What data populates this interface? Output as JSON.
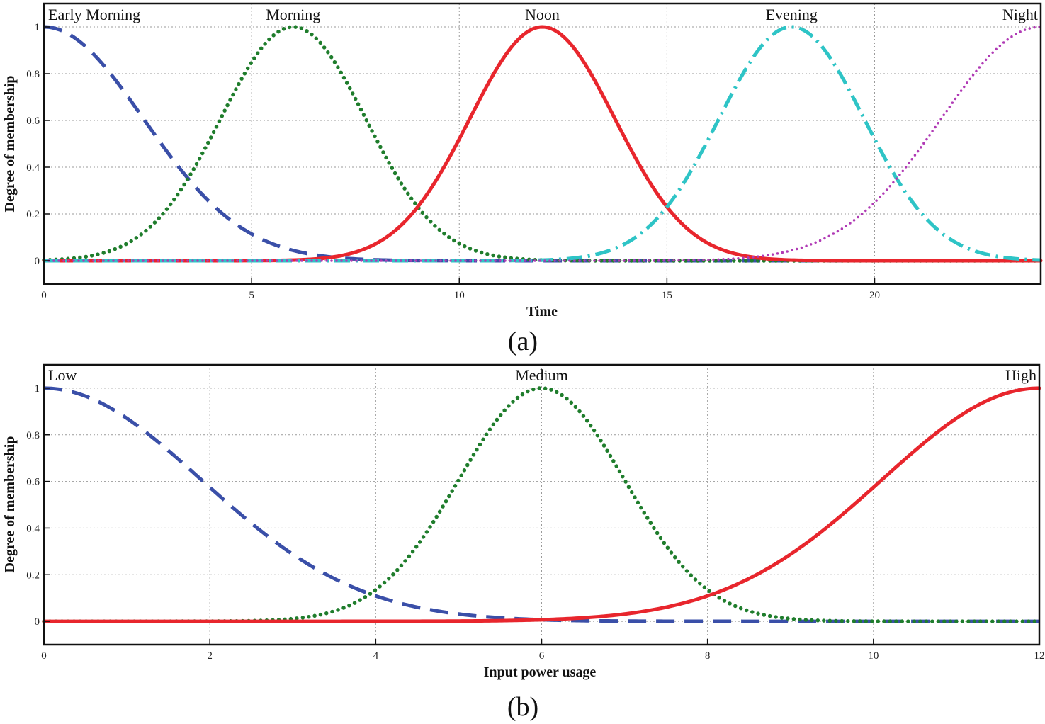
{
  "chart_data": [
    {
      "type": "line",
      "panel_label": "(a)",
      "xlabel": "Time",
      "ylabel": "Degree of membership",
      "xlim": [
        0,
        24
      ],
      "ylim": [
        -0.1,
        1.1
      ],
      "xticks": [
        0,
        5,
        10,
        15,
        20
      ],
      "yticks": [
        0,
        0.2,
        0.4,
        0.6,
        0.8,
        1
      ],
      "grid": true,
      "membership_shape": "gaussian",
      "series": [
        {
          "name": "Early Morning",
          "center": 0,
          "sigma": 2.4,
          "color": "#3a4fa8",
          "dash": "dashed"
        },
        {
          "name": "Morning",
          "center": 6,
          "sigma": 1.75,
          "color": "#1f7d2c",
          "dash": "dotted"
        },
        {
          "name": "Noon",
          "center": 12,
          "sigma": 1.75,
          "color": "#e8262d",
          "dash": "solid"
        },
        {
          "name": "Evening",
          "center": 18,
          "sigma": 1.75,
          "color": "#2ec4c6",
          "dash": "dashdot"
        },
        {
          "name": "Night",
          "center": 24,
          "sigma": 2.4,
          "color": "#b03ab5",
          "dash": "finedot"
        }
      ]
    },
    {
      "type": "line",
      "panel_label": "(b)",
      "xlabel": "Input power usage",
      "ylabel": "Degree of membership",
      "xlim": [
        0,
        12
      ],
      "ylim": [
        -0.1,
        1.1
      ],
      "xticks": [
        0,
        2,
        4,
        6,
        8,
        10,
        12
      ],
      "yticks": [
        0,
        0.2,
        0.4,
        0.6,
        0.8,
        1
      ],
      "grid": true,
      "membership_shape": "gaussian",
      "series": [
        {
          "name": "Low",
          "center": 0,
          "sigma": 1.9,
          "color": "#3a4fa8",
          "dash": "dashed"
        },
        {
          "name": "Medium",
          "center": 6,
          "sigma": 1.0,
          "color": "#1f7d2c",
          "dash": "dotted"
        },
        {
          "name": "High",
          "center": 12,
          "sigma": 1.9,
          "color": "#e8262d",
          "dash": "solid"
        }
      ]
    }
  ]
}
